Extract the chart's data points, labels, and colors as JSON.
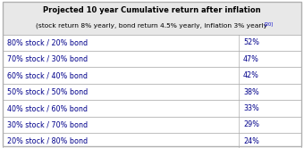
{
  "title_line1": "Projected 10 year Cumulative return after inflation",
  "title_line2": "(stock return 8% yearly, bond return 4.5% yearly, inflation 3% yearly",
  "title_superscript": "[20]",
  "rows": [
    [
      "80% stock / 20% bond",
      "52%"
    ],
    [
      "70% stock / 30% bond",
      "47%"
    ],
    [
      "60% stock / 40% bond",
      "42%"
    ],
    [
      "50% stock / 50% bond",
      "38%"
    ],
    [
      "40% stock / 60% bond",
      "33%"
    ],
    [
      "30% stock / 70% bond",
      "29%"
    ],
    [
      "20% stock / 80% bond",
      "24%"
    ]
  ],
  "header_bg": "#e8e8e8",
  "row_bg_white": "#ffffff",
  "border_color": "#b0b0b0",
  "text_color": "#00008b",
  "header_text_color": "#000000",
  "superscript_color": "#0000cc",
  "fig_bg": "#ffffff",
  "fig_width": 3.4,
  "fig_height": 1.66,
  "dpi": 100,
  "col_split": 0.785
}
